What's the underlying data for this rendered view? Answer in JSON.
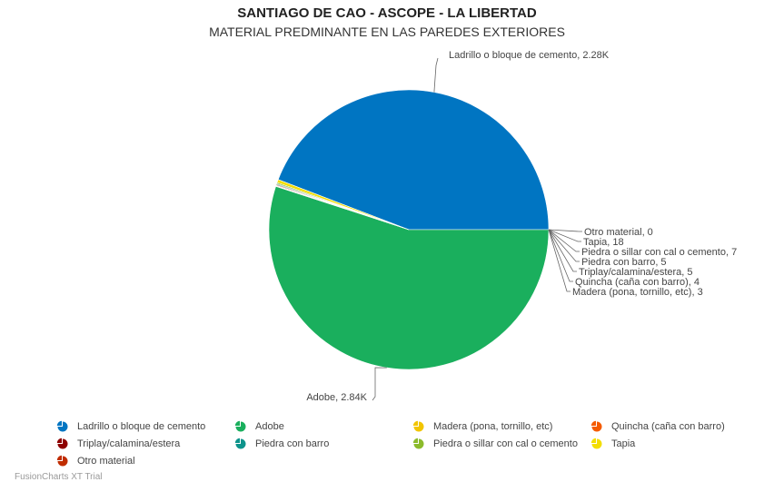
{
  "chart_data": {
    "type": "pie",
    "title": "SANTIAGO DE CAO - ASCOPE - LA LIBERTAD",
    "subtitle": "MATERIAL PREDMINANTE EN LAS PAREDES EXTERIORES",
    "slices": [
      {
        "name": "Ladrillo o bloque de cemento",
        "value": 2280,
        "value_label": "2.28K",
        "color": "#0075c2"
      },
      {
        "name": "Adobe",
        "value": 2840,
        "value_label": "2.84K",
        "color": "#1aaf5d"
      },
      {
        "name": "Madera (pona, tornillo, etc)",
        "value": 3,
        "value_label": "3",
        "color": "#f2c500"
      },
      {
        "name": "Quincha (caña con barro)",
        "value": 4,
        "value_label": "4",
        "color": "#f45b00"
      },
      {
        "name": "Triplay/calamina/estera",
        "value": 5,
        "value_label": "5",
        "color": "#8e0000"
      },
      {
        "name": "Piedra con barro",
        "value": 5,
        "value_label": "5",
        "color": "#0e948c"
      },
      {
        "name": "Piedra o sillar con cal o cemento",
        "value": 7,
        "value_label": "7",
        "color": "#8cbb2c"
      },
      {
        "name": "Tapia",
        "value": 18,
        "value_label": "18",
        "color": "#f3de00"
      },
      {
        "name": "Otro material",
        "value": 0,
        "value_label": "0",
        "color": "#c02d00"
      }
    ],
    "legend_position": "bottom"
  },
  "credit": "FusionCharts XT Trial"
}
